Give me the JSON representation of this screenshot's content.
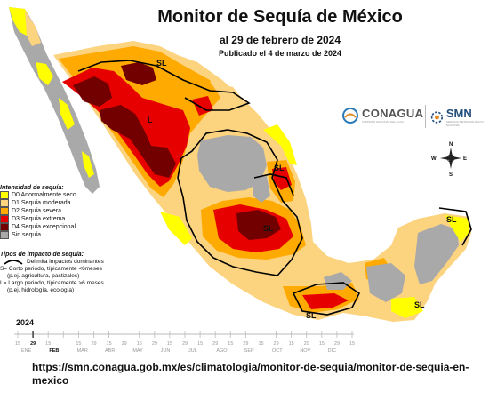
{
  "title": "Monitor de Sequía de México",
  "date_line": "al 29 de febrero de 2024",
  "published": "Publicado el 4 de marzo de 2024",
  "logos": {
    "conagua": "CONAGUA",
    "conagua_sub": "COMISIÓN NACIONAL DEL AGUA",
    "smn": "SMN",
    "smn_sub": "SERVICIO METEOROLÓGICO NACIONAL"
  },
  "compass": {
    "n": "N",
    "s": "S",
    "e": "E",
    "w": "W"
  },
  "legend": {
    "header": "Intensidad de sequía:",
    "items": [
      {
        "label": "D0 Anormalmente seco",
        "color": "#ffff00"
      },
      {
        "label": "D1 Sequía moderada",
        "color": "#fcd37f"
      },
      {
        "label": "D2 Sequía severa",
        "color": "#ffaa00"
      },
      {
        "label": "D3 Sequía extrema",
        "color": "#e60000"
      },
      {
        "label": "D4 Sequía excepcional",
        "color": "#730000"
      },
      {
        "label": "Sin sequía",
        "color": "#a9a9a9"
      }
    ]
  },
  "impacts": {
    "header": "Tipos de impacto de sequía:",
    "line1": "Delimita impactos dominantes",
    "line2": "S= Corto periodo, típicamente <6meses",
    "line3": "(p.ej. agricultura, pastizales)",
    "line4": "L= Largo periodo, típicamente >6 meses",
    "line5": "(p.ej. hidrología, ecología)"
  },
  "region_labels": [
    "SL",
    "L",
    "SL",
    "SL",
    "SL",
    "SL",
    "SL"
  ],
  "timeline": {
    "year": "2024",
    "days": [
      "15",
      "29",
      "15",
      "29",
      "15",
      "29",
      "15",
      "29",
      "15",
      "29",
      "15",
      "29",
      "15",
      "29",
      "15",
      "29",
      "15",
      "29",
      "15",
      "29",
      "15",
      "29",
      "15"
    ],
    "selected_day": "29",
    "months": [
      "ENE",
      "FEB",
      "MAR",
      "ABR",
      "MAY",
      "JUN",
      "JUL",
      "AGO",
      "SEP",
      "OCT",
      "NOV",
      "DIC"
    ],
    "selected_month": "FEB"
  },
  "source_url": "https://smn.conagua.gob.mx/es/climatologia/monitor-de-sequia/monitor-de-sequia-en-mexico"
}
